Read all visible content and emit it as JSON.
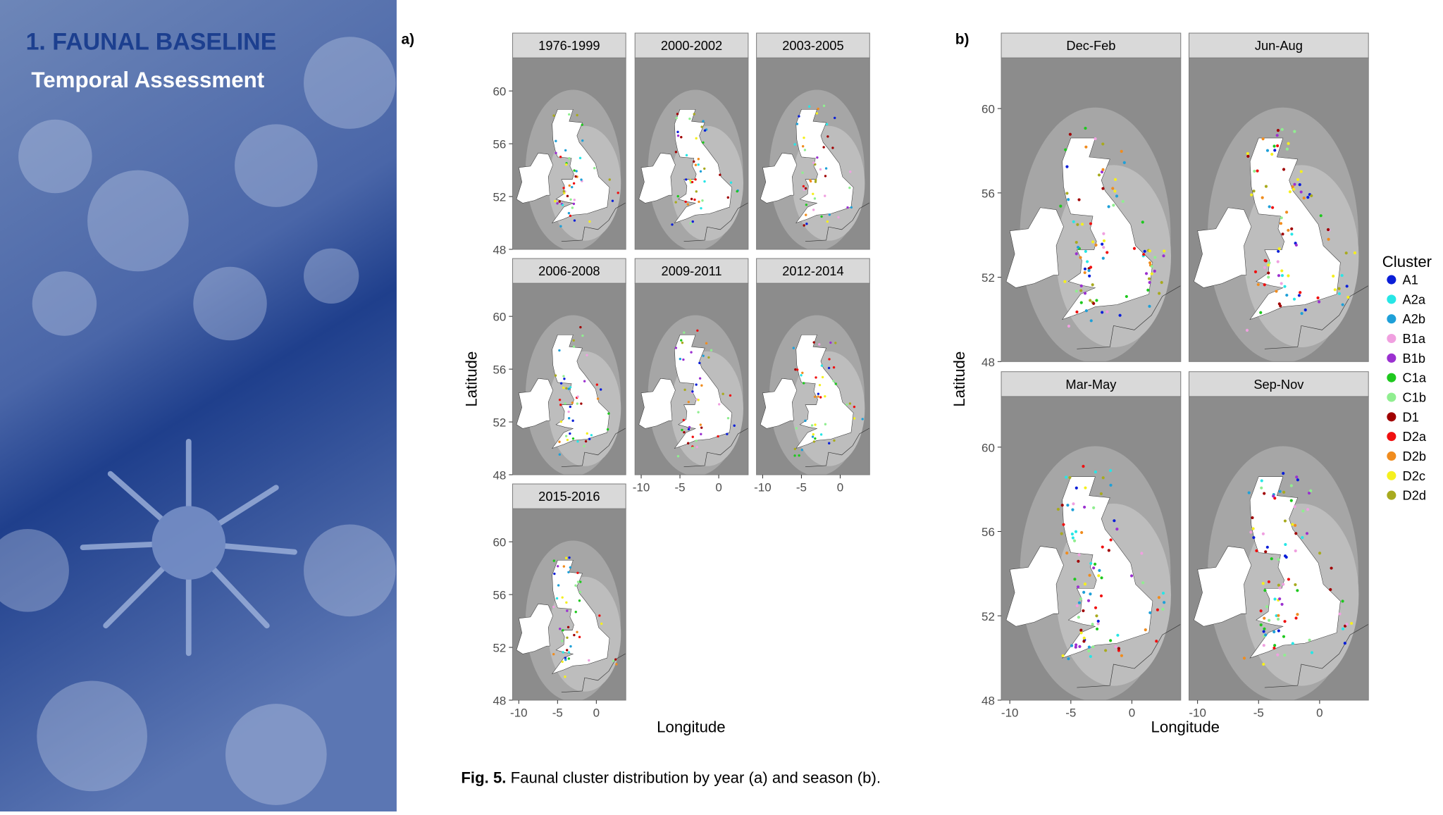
{
  "slide": {
    "title": "1. FAUNAL BASELINE",
    "subtitle": "Temporal Assessment",
    "caption_label": "Fig. 5.",
    "caption": "Faunal cluster distribution by year (a) and season (b)."
  },
  "chart_data": [
    {
      "type": "facet-map",
      "panel_label": "a)",
      "facets": [
        "1976-1999",
        "2000-2002",
        "2003-2005",
        "2006-2008",
        "2009-2011",
        "2012-2014",
        "2015-2016"
      ],
      "x_label": "Longitude",
      "y_label": "Latitude",
      "xlim": [
        -10.8,
        3.8
      ],
      "ylim": [
        48,
        62.5
      ],
      "xticks": [
        -10,
        -5,
        0
      ],
      "yticks": [
        48,
        52,
        56,
        60
      ]
    },
    {
      "type": "facet-map",
      "panel_label": "b)",
      "facets": [
        "Dec-Feb",
        "Jun-Aug",
        "Mar-May",
        "Sep-Nov"
      ],
      "x_label": "Longitude",
      "y_label": "Latitude",
      "xlim": [
        -10.7,
        4.0
      ],
      "ylim": [
        48,
        62.4
      ],
      "xticks": [
        -10,
        -5,
        0
      ],
      "yticks": [
        48,
        52,
        56,
        60
      ],
      "legend": {
        "title": "Cluster",
        "entries": [
          {
            "name": "A1",
            "color": "#0a1ed8"
          },
          {
            "name": "A2a",
            "color": "#27e6e6"
          },
          {
            "name": "A2b",
            "color": "#1ea0d8"
          },
          {
            "name": "B1a",
            "color": "#f0a0e0"
          },
          {
            "name": "B1b",
            "color": "#9b30d0"
          },
          {
            "name": "C1a",
            "color": "#1ec81e"
          },
          {
            "name": "C1b",
            "color": "#90ee90"
          },
          {
            "name": "D1",
            "color": "#a00000"
          },
          {
            "name": "D2a",
            "color": "#f01010"
          },
          {
            "name": "D2b",
            "color": "#f08c1e"
          },
          {
            "name": "D2c",
            "color": "#f5f01e"
          },
          {
            "name": "D2d",
            "color": "#a8aa1e"
          }
        ]
      }
    }
  ]
}
